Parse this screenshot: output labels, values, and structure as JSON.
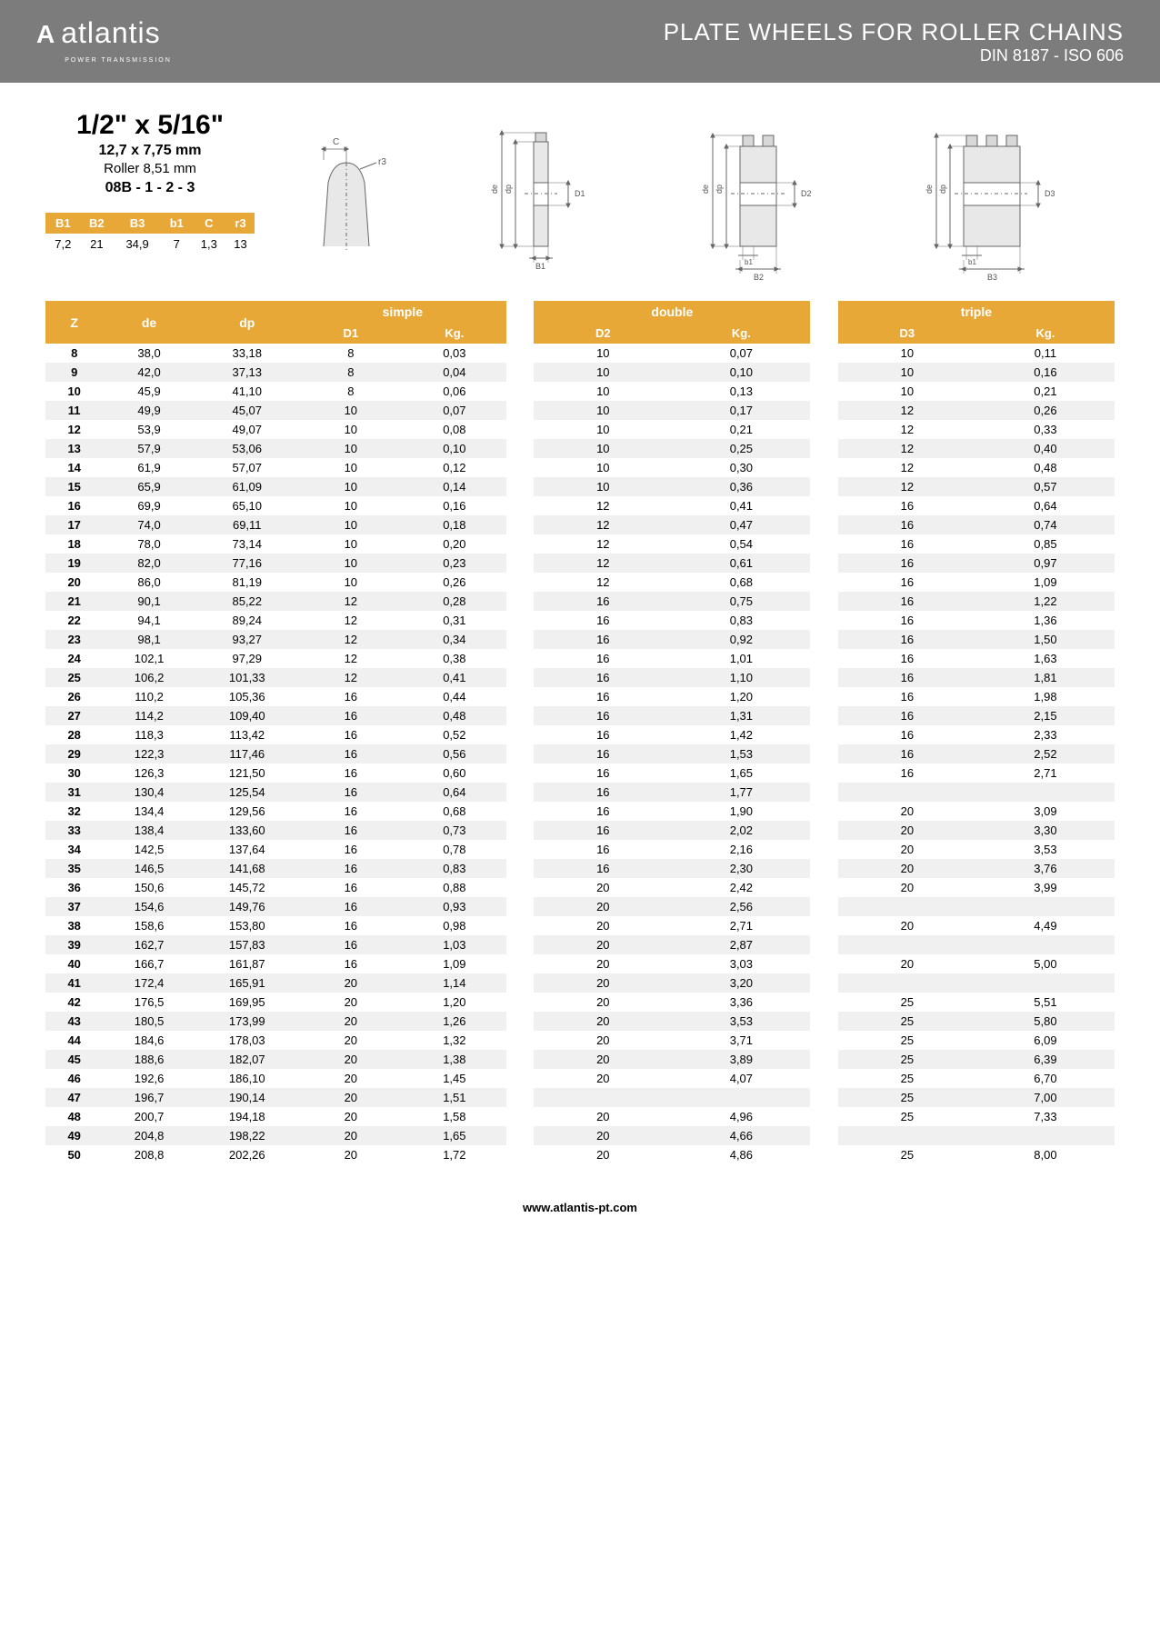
{
  "header": {
    "logo_mark": "A",
    "logo_text": "atlantis",
    "logo_sub": "POWER TRANSMISSION",
    "title_main": "PLATE WHEELS FOR ROLLER CHAINS",
    "title_sub": "DIN 8187 - ISO 606"
  },
  "spec": {
    "title": "1/2\" x 5/16\"",
    "line1": "12,7 x 7,75 mm",
    "line2": "Roller 8,51 mm",
    "line3": "08B - 1 - 2 - 3"
  },
  "mini_table": {
    "headers": [
      "B1",
      "B2",
      "B3",
      "b1",
      "C",
      "r3"
    ],
    "values": [
      "7,2",
      "21",
      "34,9",
      "7",
      "1,3",
      "13"
    ]
  },
  "diag_labels": {
    "c": "C",
    "r3": "r3",
    "de": "de",
    "dp": "dp",
    "d1": "D1",
    "d2": "D2",
    "d3": "D3",
    "b1": "B1",
    "b1l": "b1",
    "b2": "B2",
    "b3": "B3"
  },
  "columns": {
    "z": "Z",
    "de": "de",
    "dp": "dp",
    "simple": "simple",
    "double": "double",
    "triple": "triple",
    "d1": "D1",
    "d2": "D2",
    "d3": "D3",
    "kg": "Kg."
  },
  "rows": [
    {
      "z": "8",
      "de": "38,0",
      "dp": "33,18",
      "d1": "8",
      "k1": "0,03",
      "d2": "10",
      "k2": "0,07",
      "d3": "10",
      "k3": "0,11"
    },
    {
      "z": "9",
      "de": "42,0",
      "dp": "37,13",
      "d1": "8",
      "k1": "0,04",
      "d2": "10",
      "k2": "0,10",
      "d3": "10",
      "k3": "0,16"
    },
    {
      "z": "10",
      "de": "45,9",
      "dp": "41,10",
      "d1": "8",
      "k1": "0,06",
      "d2": "10",
      "k2": "0,13",
      "d3": "10",
      "k3": "0,21"
    },
    {
      "z": "11",
      "de": "49,9",
      "dp": "45,07",
      "d1": "10",
      "k1": "0,07",
      "d2": "10",
      "k2": "0,17",
      "d3": "12",
      "k3": "0,26"
    },
    {
      "z": "12",
      "de": "53,9",
      "dp": "49,07",
      "d1": "10",
      "k1": "0,08",
      "d2": "10",
      "k2": "0,21",
      "d3": "12",
      "k3": "0,33"
    },
    {
      "z": "13",
      "de": "57,9",
      "dp": "53,06",
      "d1": "10",
      "k1": "0,10",
      "d2": "10",
      "k2": "0,25",
      "d3": "12",
      "k3": "0,40"
    },
    {
      "z": "14",
      "de": "61,9",
      "dp": "57,07",
      "d1": "10",
      "k1": "0,12",
      "d2": "10",
      "k2": "0,30",
      "d3": "12",
      "k3": "0,48"
    },
    {
      "z": "15",
      "de": "65,9",
      "dp": "61,09",
      "d1": "10",
      "k1": "0,14",
      "d2": "10",
      "k2": "0,36",
      "d3": "12",
      "k3": "0,57"
    },
    {
      "z": "16",
      "de": "69,9",
      "dp": "65,10",
      "d1": "10",
      "k1": "0,16",
      "d2": "12",
      "k2": "0,41",
      "d3": "16",
      "k3": "0,64"
    },
    {
      "z": "17",
      "de": "74,0",
      "dp": "69,11",
      "d1": "10",
      "k1": "0,18",
      "d2": "12",
      "k2": "0,47",
      "d3": "16",
      "k3": "0,74"
    },
    {
      "z": "18",
      "de": "78,0",
      "dp": "73,14",
      "d1": "10",
      "k1": "0,20",
      "d2": "12",
      "k2": "0,54",
      "d3": "16",
      "k3": "0,85"
    },
    {
      "z": "19",
      "de": "82,0",
      "dp": "77,16",
      "d1": "10",
      "k1": "0,23",
      "d2": "12",
      "k2": "0,61",
      "d3": "16",
      "k3": "0,97"
    },
    {
      "z": "20",
      "de": "86,0",
      "dp": "81,19",
      "d1": "10",
      "k1": "0,26",
      "d2": "12",
      "k2": "0,68",
      "d3": "16",
      "k3": "1,09"
    },
    {
      "z": "21",
      "de": "90,1",
      "dp": "85,22",
      "d1": "12",
      "k1": "0,28",
      "d2": "16",
      "k2": "0,75",
      "d3": "16",
      "k3": "1,22"
    },
    {
      "z": "22",
      "de": "94,1",
      "dp": "89,24",
      "d1": "12",
      "k1": "0,31",
      "d2": "16",
      "k2": "0,83",
      "d3": "16",
      "k3": "1,36"
    },
    {
      "z": "23",
      "de": "98,1",
      "dp": "93,27",
      "d1": "12",
      "k1": "0,34",
      "d2": "16",
      "k2": "0,92",
      "d3": "16",
      "k3": "1,50"
    },
    {
      "z": "24",
      "de": "102,1",
      "dp": "97,29",
      "d1": "12",
      "k1": "0,38",
      "d2": "16",
      "k2": "1,01",
      "d3": "16",
      "k3": "1,63"
    },
    {
      "z": "25",
      "de": "106,2",
      "dp": "101,33",
      "d1": "12",
      "k1": "0,41",
      "d2": "16",
      "k2": "1,10",
      "d3": "16",
      "k3": "1,81"
    },
    {
      "z": "26",
      "de": "110,2",
      "dp": "105,36",
      "d1": "16",
      "k1": "0,44",
      "d2": "16",
      "k2": "1,20",
      "d3": "16",
      "k3": "1,98"
    },
    {
      "z": "27",
      "de": "114,2",
      "dp": "109,40",
      "d1": "16",
      "k1": "0,48",
      "d2": "16",
      "k2": "1,31",
      "d3": "16",
      "k3": "2,15"
    },
    {
      "z": "28",
      "de": "118,3",
      "dp": "113,42",
      "d1": "16",
      "k1": "0,52",
      "d2": "16",
      "k2": "1,42",
      "d3": "16",
      "k3": "2,33"
    },
    {
      "z": "29",
      "de": "122,3",
      "dp": "117,46",
      "d1": "16",
      "k1": "0,56",
      "d2": "16",
      "k2": "1,53",
      "d3": "16",
      "k3": "2,52"
    },
    {
      "z": "30",
      "de": "126,3",
      "dp": "121,50",
      "d1": "16",
      "k1": "0,60",
      "d2": "16",
      "k2": "1,65",
      "d3": "16",
      "k3": "2,71"
    },
    {
      "z": "31",
      "de": "130,4",
      "dp": "125,54",
      "d1": "16",
      "k1": "0,64",
      "d2": "16",
      "k2": "1,77",
      "d3": "",
      "k3": ""
    },
    {
      "z": "32",
      "de": "134,4",
      "dp": "129,56",
      "d1": "16",
      "k1": "0,68",
      "d2": "16",
      "k2": "1,90",
      "d3": "20",
      "k3": "3,09"
    },
    {
      "z": "33",
      "de": "138,4",
      "dp": "133,60",
      "d1": "16",
      "k1": "0,73",
      "d2": "16",
      "k2": "2,02",
      "d3": "20",
      "k3": "3,30"
    },
    {
      "z": "34",
      "de": "142,5",
      "dp": "137,64",
      "d1": "16",
      "k1": "0,78",
      "d2": "16",
      "k2": "2,16",
      "d3": "20",
      "k3": "3,53"
    },
    {
      "z": "35",
      "de": "146,5",
      "dp": "141,68",
      "d1": "16",
      "k1": "0,83",
      "d2": "16",
      "k2": "2,30",
      "d3": "20",
      "k3": "3,76"
    },
    {
      "z": "36",
      "de": "150,6",
      "dp": "145,72",
      "d1": "16",
      "k1": "0,88",
      "d2": "20",
      "k2": "2,42",
      "d3": "20",
      "k3": "3,99"
    },
    {
      "z": "37",
      "de": "154,6",
      "dp": "149,76",
      "d1": "16",
      "k1": "0,93",
      "d2": "20",
      "k2": "2,56",
      "d3": "",
      "k3": ""
    },
    {
      "z": "38",
      "de": "158,6",
      "dp": "153,80",
      "d1": "16",
      "k1": "0,98",
      "d2": "20",
      "k2": "2,71",
      "d3": "20",
      "k3": "4,49"
    },
    {
      "z": "39",
      "de": "162,7",
      "dp": "157,83",
      "d1": "16",
      "k1": "1,03",
      "d2": "20",
      "k2": "2,87",
      "d3": "",
      "k3": ""
    },
    {
      "z": "40",
      "de": "166,7",
      "dp": "161,87",
      "d1": "16",
      "k1": "1,09",
      "d2": "20",
      "k2": "3,03",
      "d3": "20",
      "k3": "5,00"
    },
    {
      "z": "41",
      "de": "172,4",
      "dp": "165,91",
      "d1": "20",
      "k1": "1,14",
      "d2": "20",
      "k2": "3,20",
      "d3": "",
      "k3": ""
    },
    {
      "z": "42",
      "de": "176,5",
      "dp": "169,95",
      "d1": "20",
      "k1": "1,20",
      "d2": "20",
      "k2": "3,36",
      "d3": "25",
      "k3": "5,51"
    },
    {
      "z": "43",
      "de": "180,5",
      "dp": "173,99",
      "d1": "20",
      "k1": "1,26",
      "d2": "20",
      "k2": "3,53",
      "d3": "25",
      "k3": "5,80"
    },
    {
      "z": "44",
      "de": "184,6",
      "dp": "178,03",
      "d1": "20",
      "k1": "1,32",
      "d2": "20",
      "k2": "3,71",
      "d3": "25",
      "k3": "6,09"
    },
    {
      "z": "45",
      "de": "188,6",
      "dp": "182,07",
      "d1": "20",
      "k1": "1,38",
      "d2": "20",
      "k2": "3,89",
      "d3": "25",
      "k3": "6,39"
    },
    {
      "z": "46",
      "de": "192,6",
      "dp": "186,10",
      "d1": "20",
      "k1": "1,45",
      "d2": "20",
      "k2": "4,07",
      "d3": "25",
      "k3": "6,70"
    },
    {
      "z": "47",
      "de": "196,7",
      "dp": "190,14",
      "d1": "20",
      "k1": "1,51",
      "d2": "",
      "k2": "",
      "d3": "25",
      "k3": "7,00"
    },
    {
      "z": "48",
      "de": "200,7",
      "dp": "194,18",
      "d1": "20",
      "k1": "1,58",
      "d2": "20",
      "k2": "4,96",
      "d3": "25",
      "k3": "7,33"
    },
    {
      "z": "49",
      "de": "204,8",
      "dp": "198,22",
      "d1": "20",
      "k1": "1,65",
      "d2": "20",
      "k2": "4,66",
      "d3": "",
      "k3": ""
    },
    {
      "z": "50",
      "de": "208,8",
      "dp": "202,26",
      "d1": "20",
      "k1": "1,72",
      "d2": "20",
      "k2": "4,86",
      "d3": "25",
      "k3": "8,00"
    }
  ],
  "footer": "www.atlantis-pt.com"
}
